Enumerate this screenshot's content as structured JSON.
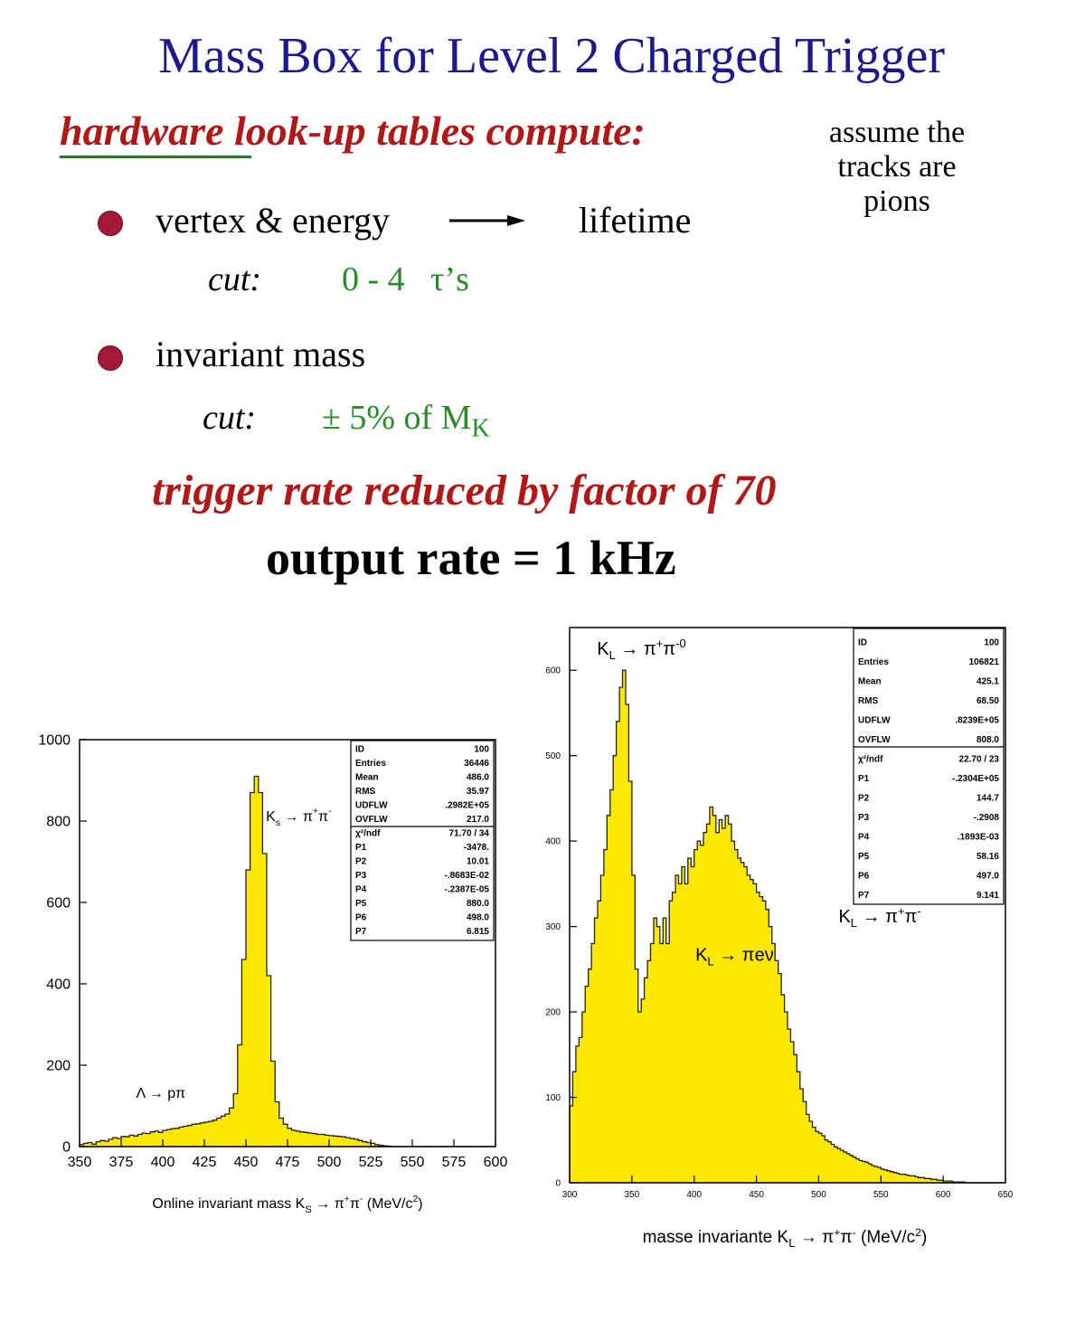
{
  "slide": {
    "title": "Mass Box for Level 2 Charged Trigger",
    "hardware_word": "hardware",
    "hardware_rest": " look-up tables compute:",
    "assume_lines": [
      "assume the",
      "tracks are",
      "pions"
    ],
    "bullet1": {
      "left": "vertex & energy",
      "right": "lifetime",
      "cut_label": "cut:",
      "cut_value": "0 - 4   τ’s"
    },
    "bullet2": {
      "text": "invariant mass",
      "cut_label": "cut:",
      "cut_value": "± 5% of M",
      "cut_sub": "K"
    },
    "reduction": "trigger rate reduced by factor of 70",
    "output": "output rate = 1 kHz"
  },
  "colors": {
    "title": "#1a1a8c",
    "emphasis": "#b01818",
    "cut": "#2a8a2a",
    "bullet": "#a6183a",
    "fill": "#ffe800"
  },
  "chart_data": [
    {
      "type": "histogram",
      "xlim": [
        350,
        600
      ],
      "ylim": [
        0,
        1000
      ],
      "xticks": [
        350,
        375,
        400,
        425,
        450,
        475,
        500,
        525,
        550,
        575,
        600
      ],
      "yticks": [
        0,
        200,
        400,
        600,
        800,
        1000
      ],
      "xlabel_main": "Online invariant mass K",
      "xlabel_sub": "S",
      "xlabel_rest": " → π",
      "xlabel_sup1": "+",
      "xlabel_mid": "π",
      "xlabel_sup2": "-",
      "xlabel_unit": " (MeV/c",
      "xlabel_unit_sup": "2",
      "xlabel_close": ")",
      "annotations": [
        {
          "text": "K",
          "sub": "s",
          "rest": " → π",
          "sup1": "+",
          "mid": "π",
          "sup2": "-",
          "x": 462,
          "y": 800
        },
        {
          "text": "Λ → pπ",
          "x": 384,
          "y": 120
        }
      ],
      "stats": [
        [
          "ID",
          "100"
        ],
        [
          "Entries",
          "36446"
        ],
        [
          "Mean",
          "486.0"
        ],
        [
          "RMS",
          "35.97"
        ],
        [
          "UDFLW",
          ".2982E+05"
        ],
        [
          "OVFLW",
          "217.0"
        ],
        [
          "χ²/ndf",
          "71.70   /   34"
        ],
        [
          "P1",
          "-3478."
        ],
        [
          "P2",
          "10.01"
        ],
        [
          "P3",
          "-.8683E-02"
        ],
        [
          "P4",
          "-.2387E-05"
        ],
        [
          "P5",
          "880.0"
        ],
        [
          "P6",
          "498.0"
        ],
        [
          "P7",
          "6.815"
        ]
      ],
      "bins": {
        "x0": 350,
        "width": 2.5,
        "values": [
          5,
          8,
          10,
          6,
          12,
          15,
          13,
          18,
          22,
          20,
          25,
          24,
          28,
          26,
          30,
          33,
          32,
          36,
          38,
          35,
          40,
          42,
          44,
          45,
          48,
          50,
          52,
          55,
          56,
          58,
          60,
          62,
          65,
          70,
          75,
          80,
          95,
          130,
          250,
          460,
          680,
          870,
          910,
          870,
          720,
          420,
          210,
          110,
          70,
          55,
          45,
          40,
          38,
          36,
          35,
          33,
          32,
          30,
          30,
          28,
          27,
          26,
          25,
          24,
          22,
          20,
          18,
          15,
          12,
          10,
          8,
          5,
          3,
          2,
          1,
          0,
          0,
          0,
          0,
          0,
          0,
          0,
          0,
          0,
          0,
          0,
          0,
          0,
          0,
          0,
          0,
          0,
          0,
          0,
          0,
          0,
          0,
          0,
          0,
          0
        ]
      }
    },
    {
      "type": "histogram",
      "xlim": [
        300,
        650
      ],
      "ylim": [
        0,
        650
      ],
      "xticks": [
        300,
        350,
        400,
        450,
        500,
        550,
        600,
        650
      ],
      "yticks": [
        0,
        100,
        200,
        300,
        400,
        500,
        600
      ],
      "xlabel_main": "masse invariante K",
      "xlabel_sub": "L",
      "xlabel_rest": " → π",
      "xlabel_sup1": "+",
      "xlabel_mid": "π",
      "xlabel_sup2": "-",
      "xlabel_unit": " (MeV/c",
      "xlabel_unit_sup": "2",
      "xlabel_close": ")",
      "annotations": [
        {
          "text": "K",
          "sub": "L",
          "rest": " → π",
          "sup1": "+",
          "mid": "π",
          "sup2": "-",
          "sup3": "0",
          "x": 322,
          "y": 618
        },
        {
          "text": "K",
          "sub": "L",
          "rest": " → πeν",
          "x": 401,
          "y": 260
        },
        {
          "text": "K",
          "sub": "L",
          "rest": " → π",
          "sup1": "+",
          "mid": "π",
          "sup2": "-",
          "x": 516,
          "y": 305
        }
      ],
      "stats": [
        [
          "ID",
          "100"
        ],
        [
          "Entries",
          "106821"
        ],
        [
          "Mean",
          "425.1"
        ],
        [
          "RMS",
          "68.50"
        ],
        [
          "UDFLW",
          ".8239E+05"
        ],
        [
          "OVFLW",
          "808.0"
        ],
        [
          "χ²/ndf",
          "22.70   /   23"
        ],
        [
          "P1",
          "-.2304E+05"
        ],
        [
          "P2",
          "144.7"
        ],
        [
          "P3",
          "-.2908"
        ],
        [
          "P4",
          ".1893E-03"
        ],
        [
          "P5",
          "58.16"
        ],
        [
          "P6",
          "497.0"
        ],
        [
          "P7",
          "9.141"
        ]
      ],
      "bins": {
        "x0": 300,
        "width": 2.5,
        "values": [
          90,
          130,
          160,
          170,
          200,
          230,
          250,
          280,
          310,
          330,
          360,
          390,
          430,
          460,
          500,
          540,
          580,
          600,
          560,
          470,
          360,
          250,
          200,
          215,
          240,
          260,
          280,
          310,
          300,
          280,
          310,
          280,
          330,
          340,
          360,
          350,
          370,
          350,
          380,
          370,
          390,
          400,
          395,
          410,
          420,
          440,
          430,
          410,
          425,
          415,
          430,
          420,
          400,
          390,
          380,
          375,
          370,
          360,
          355,
          350,
          340,
          335,
          330,
          320,
          300,
          280,
          260,
          245,
          220,
          200,
          180,
          165,
          150,
          130,
          110,
          95,
          80,
          72,
          65,
          60,
          58,
          55,
          50,
          48,
          45,
          42,
          40,
          38,
          36,
          34,
          32,
          30,
          28,
          26,
          25,
          24,
          22,
          20,
          19,
          18,
          16,
          15,
          14,
          13,
          12,
          11,
          10,
          10,
          9,
          8,
          8,
          7,
          6,
          6,
          5,
          5,
          4,
          4,
          3,
          3,
          2,
          2,
          2,
          1,
          1,
          1,
          1,
          0,
          0,
          0,
          0,
          0,
          0,
          0,
          0,
          0,
          0,
          0,
          0,
          0
        ]
      }
    }
  ]
}
